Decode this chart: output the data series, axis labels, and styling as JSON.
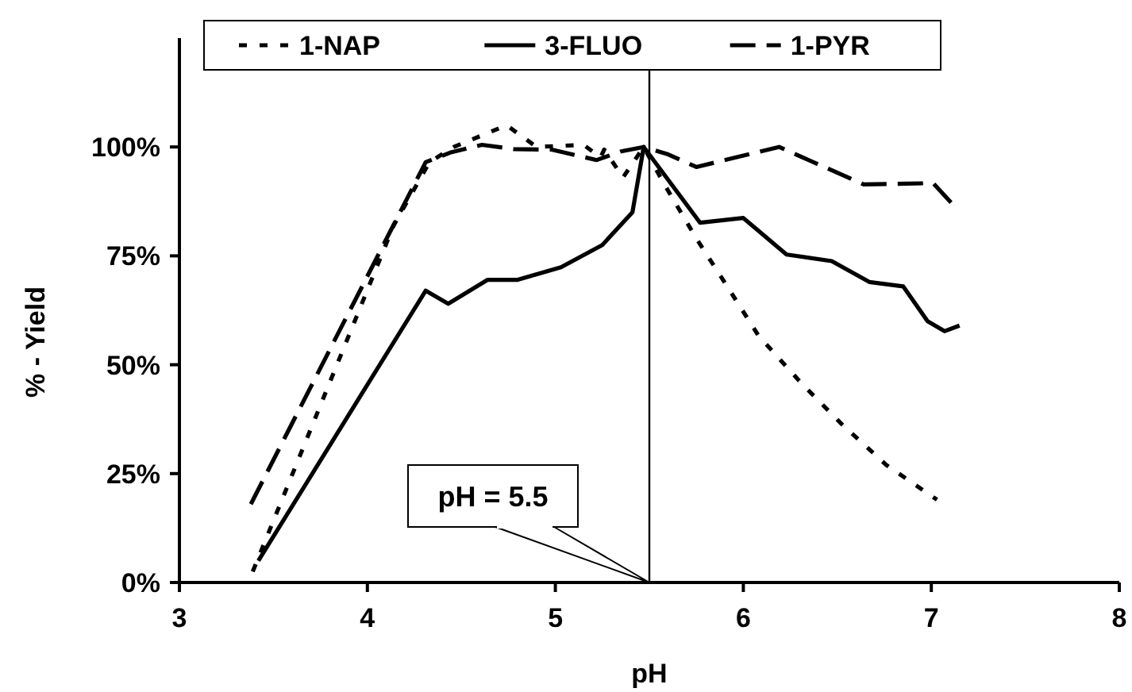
{
  "chart_data": {
    "type": "line",
    "xlabel": "pH",
    "ylabel": "% - Yield",
    "xlim": [
      3,
      8
    ],
    "xticks": [
      3,
      4,
      5,
      6,
      7,
      8
    ],
    "ylim": [
      0,
      125
    ],
    "yticks": [
      {
        "value": 0,
        "label": "0%"
      },
      {
        "value": 25,
        "label": "25%"
      },
      {
        "value": 50,
        "label": "50%"
      },
      {
        "value": 75,
        "label": "75%"
      },
      {
        "value": 100,
        "label": "100%"
      }
    ],
    "grid": false,
    "legend": "top",
    "marker": "none",
    "ref_lines": [
      {
        "axis": "x",
        "value": 5.5,
        "label": "pH = 5.5",
        "color": "#000000"
      }
    ],
    "series": [
      {
        "name": "1-NAP",
        "color": "#000000",
        "line_style": "dotted",
        "x": [
          3.39,
          4.14,
          4.33,
          4.46,
          4.74,
          4.9,
          5.15,
          5.24,
          5.26,
          5.36,
          5.47,
          5.58,
          5.75,
          5.92,
          6.08,
          6.31,
          6.52,
          6.76,
          7.03
        ],
        "values": [
          2.5,
          82,
          96.5,
          100,
          105,
          100,
          100.5,
          97.6,
          99.4,
          93,
          100,
          91.4,
          79,
          67.6,
          56.7,
          45.7,
          36.5,
          27,
          19
        ]
      },
      {
        "name": "3-FLUO",
        "color": "#000000",
        "line_style": "solid",
        "x": [
          3.42,
          4.31,
          4.43,
          4.64,
          4.8,
          5.03,
          5.25,
          5.41,
          5.47,
          5.77,
          6.0,
          6.23,
          6.47,
          6.67,
          6.85,
          6.98,
          7.07,
          7.15
        ],
        "values": [
          5,
          67,
          64,
          69.5,
          69.5,
          72.4,
          77.5,
          85,
          100,
          82.6,
          83.7,
          75.3,
          73.8,
          69,
          68,
          60,
          57.7,
          59
        ]
      },
      {
        "name": "1-PYR",
        "color": "#000000",
        "line_style": "dashed",
        "x": [
          3.38,
          4.31,
          4.44,
          4.61,
          4.78,
          4.98,
          5.22,
          5.35,
          5.47,
          5.6,
          5.75,
          6.19,
          6.64,
          7.01,
          7.11
        ],
        "values": [
          18,
          96.5,
          98.7,
          100.5,
          99.5,
          99.4,
          97,
          99,
          100,
          98.3,
          95.4,
          100,
          91.4,
          91.7,
          87
        ]
      }
    ]
  }
}
